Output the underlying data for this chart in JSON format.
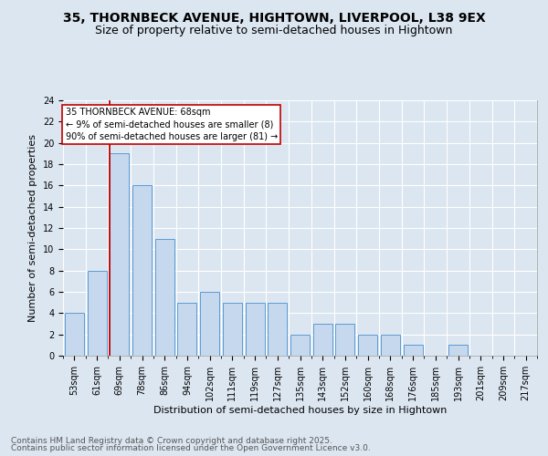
{
  "title_line1": "35, THORNBECK AVENUE, HIGHTOWN, LIVERPOOL, L38 9EX",
  "title_line2": "Size of property relative to semi-detached houses in Hightown",
  "xlabel": "Distribution of semi-detached houses by size in Hightown",
  "ylabel": "Number of semi-detached properties",
  "categories": [
    "53sqm",
    "61sqm",
    "69sqm",
    "78sqm",
    "86sqm",
    "94sqm",
    "102sqm",
    "111sqm",
    "119sqm",
    "127sqm",
    "135sqm",
    "143sqm",
    "152sqm",
    "160sqm",
    "168sqm",
    "176sqm",
    "185sqm",
    "193sqm",
    "201sqm",
    "209sqm",
    "217sqm"
  ],
  "values": [
    4,
    8,
    19,
    16,
    11,
    5,
    6,
    5,
    5,
    5,
    2,
    3,
    3,
    2,
    2,
    1,
    0,
    1,
    0,
    0,
    0
  ],
  "bar_color": "#c5d8ed",
  "bar_edge_color": "#5b9bd5",
  "highlight_bar_index": 2,
  "highlight_color": "#c00000",
  "annotation_title": "35 THORNBECK AVENUE: 68sqm",
  "annotation_line1": "← 9% of semi-detached houses are smaller (8)",
  "annotation_line2": "90% of semi-detached houses are larger (81) →",
  "annotation_box_color": "#ffffff",
  "annotation_box_edge": "#c00000",
  "ylim": [
    0,
    24
  ],
  "yticks": [
    0,
    2,
    4,
    6,
    8,
    10,
    12,
    14,
    16,
    18,
    20,
    22,
    24
  ],
  "background_color": "#dce6f1",
  "plot_bg_color": "#dce6f1",
  "footer_line1": "Contains HM Land Registry data © Crown copyright and database right 2025.",
  "footer_line2": "Contains public sector information licensed under the Open Government Licence v3.0.",
  "grid_color": "#ffffff",
  "title_fontsize": 10,
  "subtitle_fontsize": 9,
  "axis_label_fontsize": 8,
  "tick_fontsize": 7,
  "footer_fontsize": 6.5
}
